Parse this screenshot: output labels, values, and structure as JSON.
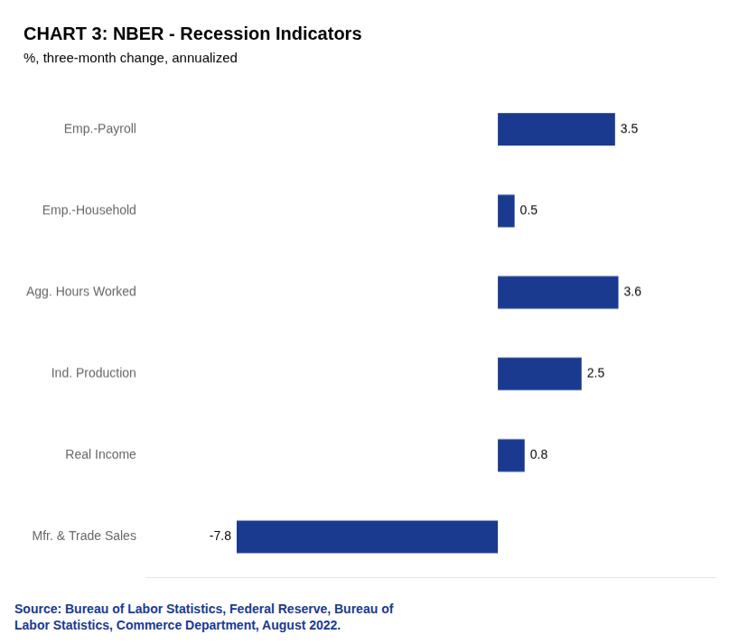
{
  "chart_data": {
    "type": "bar",
    "orientation": "horizontal",
    "title": "CHART 3: NBER - Recession Indicators",
    "subtitle": "%, three-month change, annualized",
    "annotations": [
      "Source: Bureau of Labor Statistics, Federal Reserve, Bureau of\nLabor Statistics, Commerce Department, August 2022."
    ],
    "categories": [
      "Mfr. & Trade Sales",
      "Real Income",
      "Ind. Production",
      "Agg. Hours Worked",
      "Emp.-Household",
      "Emp.-Payroll"
    ],
    "values": [
      -7.8,
      0.8,
      2.5,
      3.6,
      0.5,
      3.5
    ],
    "color": "#1a3a8f",
    "xlim": [
      -10.5,
      6.5
    ],
    "grid": false,
    "tick_labels": "y",
    "data_labels": true
  }
}
